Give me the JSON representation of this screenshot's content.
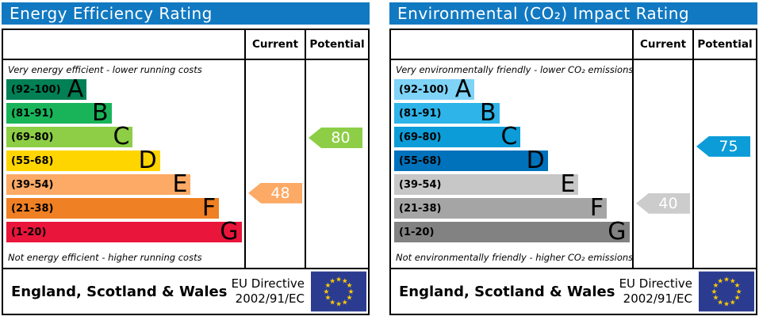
{
  "theme": {
    "header_bar_color": "#1179c2",
    "border_color": "#000000",
    "eu_flag_blue": "#2b3c90",
    "eu_flag_star_yellow": "#ffcc00"
  },
  "chart_data": [
    {
      "type": "bar",
      "title": "Energy Efficiency Rating",
      "columns": {
        "current": "Current",
        "potential": "Potential"
      },
      "caption_top": "Very energy efficient - lower running costs",
      "caption_bottom": "Not energy efficient - higher running costs",
      "bands": [
        {
          "label": "(92-100)",
          "letter": "A",
          "min": 92,
          "max": 100,
          "color": "#008054",
          "width_pct": 34
        },
        {
          "label": "(81-91)",
          "letter": "B",
          "min": 81,
          "max": 91,
          "color": "#19b459",
          "width_pct": 44.5
        },
        {
          "label": "(69-80)",
          "letter": "C",
          "min": 69,
          "max": 80,
          "color": "#8dce46",
          "width_pct": 53.5
        },
        {
          "label": "(55-68)",
          "letter": "D",
          "min": 55,
          "max": 68,
          "color": "#ffd500",
          "width_pct": 65
        },
        {
          "label": "(39-54)",
          "letter": "E",
          "min": 39,
          "max": 54,
          "color": "#fcaa65",
          "width_pct": 78
        },
        {
          "label": "(21-38)",
          "letter": "F",
          "min": 21,
          "max": 38,
          "color": "#ef8023",
          "width_pct": 90
        },
        {
          "label": "(1-20)",
          "letter": "G",
          "min": 1,
          "max": 20,
          "color": "#e9153b",
          "width_pct": 99.5
        }
      ],
      "current": {
        "value": 48,
        "color": "#fcaa65"
      },
      "potential": {
        "value": 80,
        "color": "#8dce46"
      },
      "footer": {
        "region": "England, Scotland & Wales",
        "directive_line1": "EU Directive",
        "directive_line2": "2002/91/EC"
      }
    },
    {
      "type": "bar",
      "title": "Environmental (CO₂) Impact Rating",
      "columns": {
        "current": "Current",
        "potential": "Potential"
      },
      "caption_top": "Very environmentally friendly - lower CO₂ emissions",
      "caption_bottom": "Not environmentally friendly - higher CO₂ emissions",
      "bands": [
        {
          "label": "(92-100)",
          "letter": "A",
          "min": 92,
          "max": 100,
          "color": "#7ed3f7",
          "width_pct": 34
        },
        {
          "label": "(81-91)",
          "letter": "B",
          "min": 81,
          "max": 91,
          "color": "#2eb4e8",
          "width_pct": 44.5
        },
        {
          "label": "(69-80)",
          "letter": "C",
          "min": 69,
          "max": 80,
          "color": "#0c9cd8",
          "width_pct": 53.5
        },
        {
          "label": "(55-68)",
          "letter": "D",
          "min": 55,
          "max": 68,
          "color": "#0072bc",
          "width_pct": 65
        },
        {
          "label": "(39-54)",
          "letter": "E",
          "min": 39,
          "max": 54,
          "color": "#c7c7c7",
          "width_pct": 78
        },
        {
          "label": "(21-38)",
          "letter": "F",
          "min": 21,
          "max": 38,
          "color": "#a5a5a5",
          "width_pct": 90
        },
        {
          "label": "(1-20)",
          "letter": "G",
          "min": 1,
          "max": 20,
          "color": "#828282",
          "width_pct": 99.5
        }
      ],
      "current": {
        "value": 40,
        "color": "#cccccc"
      },
      "potential": {
        "value": 75,
        "color": "#0c9cd8"
      },
      "footer": {
        "region": "England, Scotland & Wales",
        "directive_line1": "EU Directive",
        "directive_line2": "2002/91/EC"
      }
    }
  ]
}
